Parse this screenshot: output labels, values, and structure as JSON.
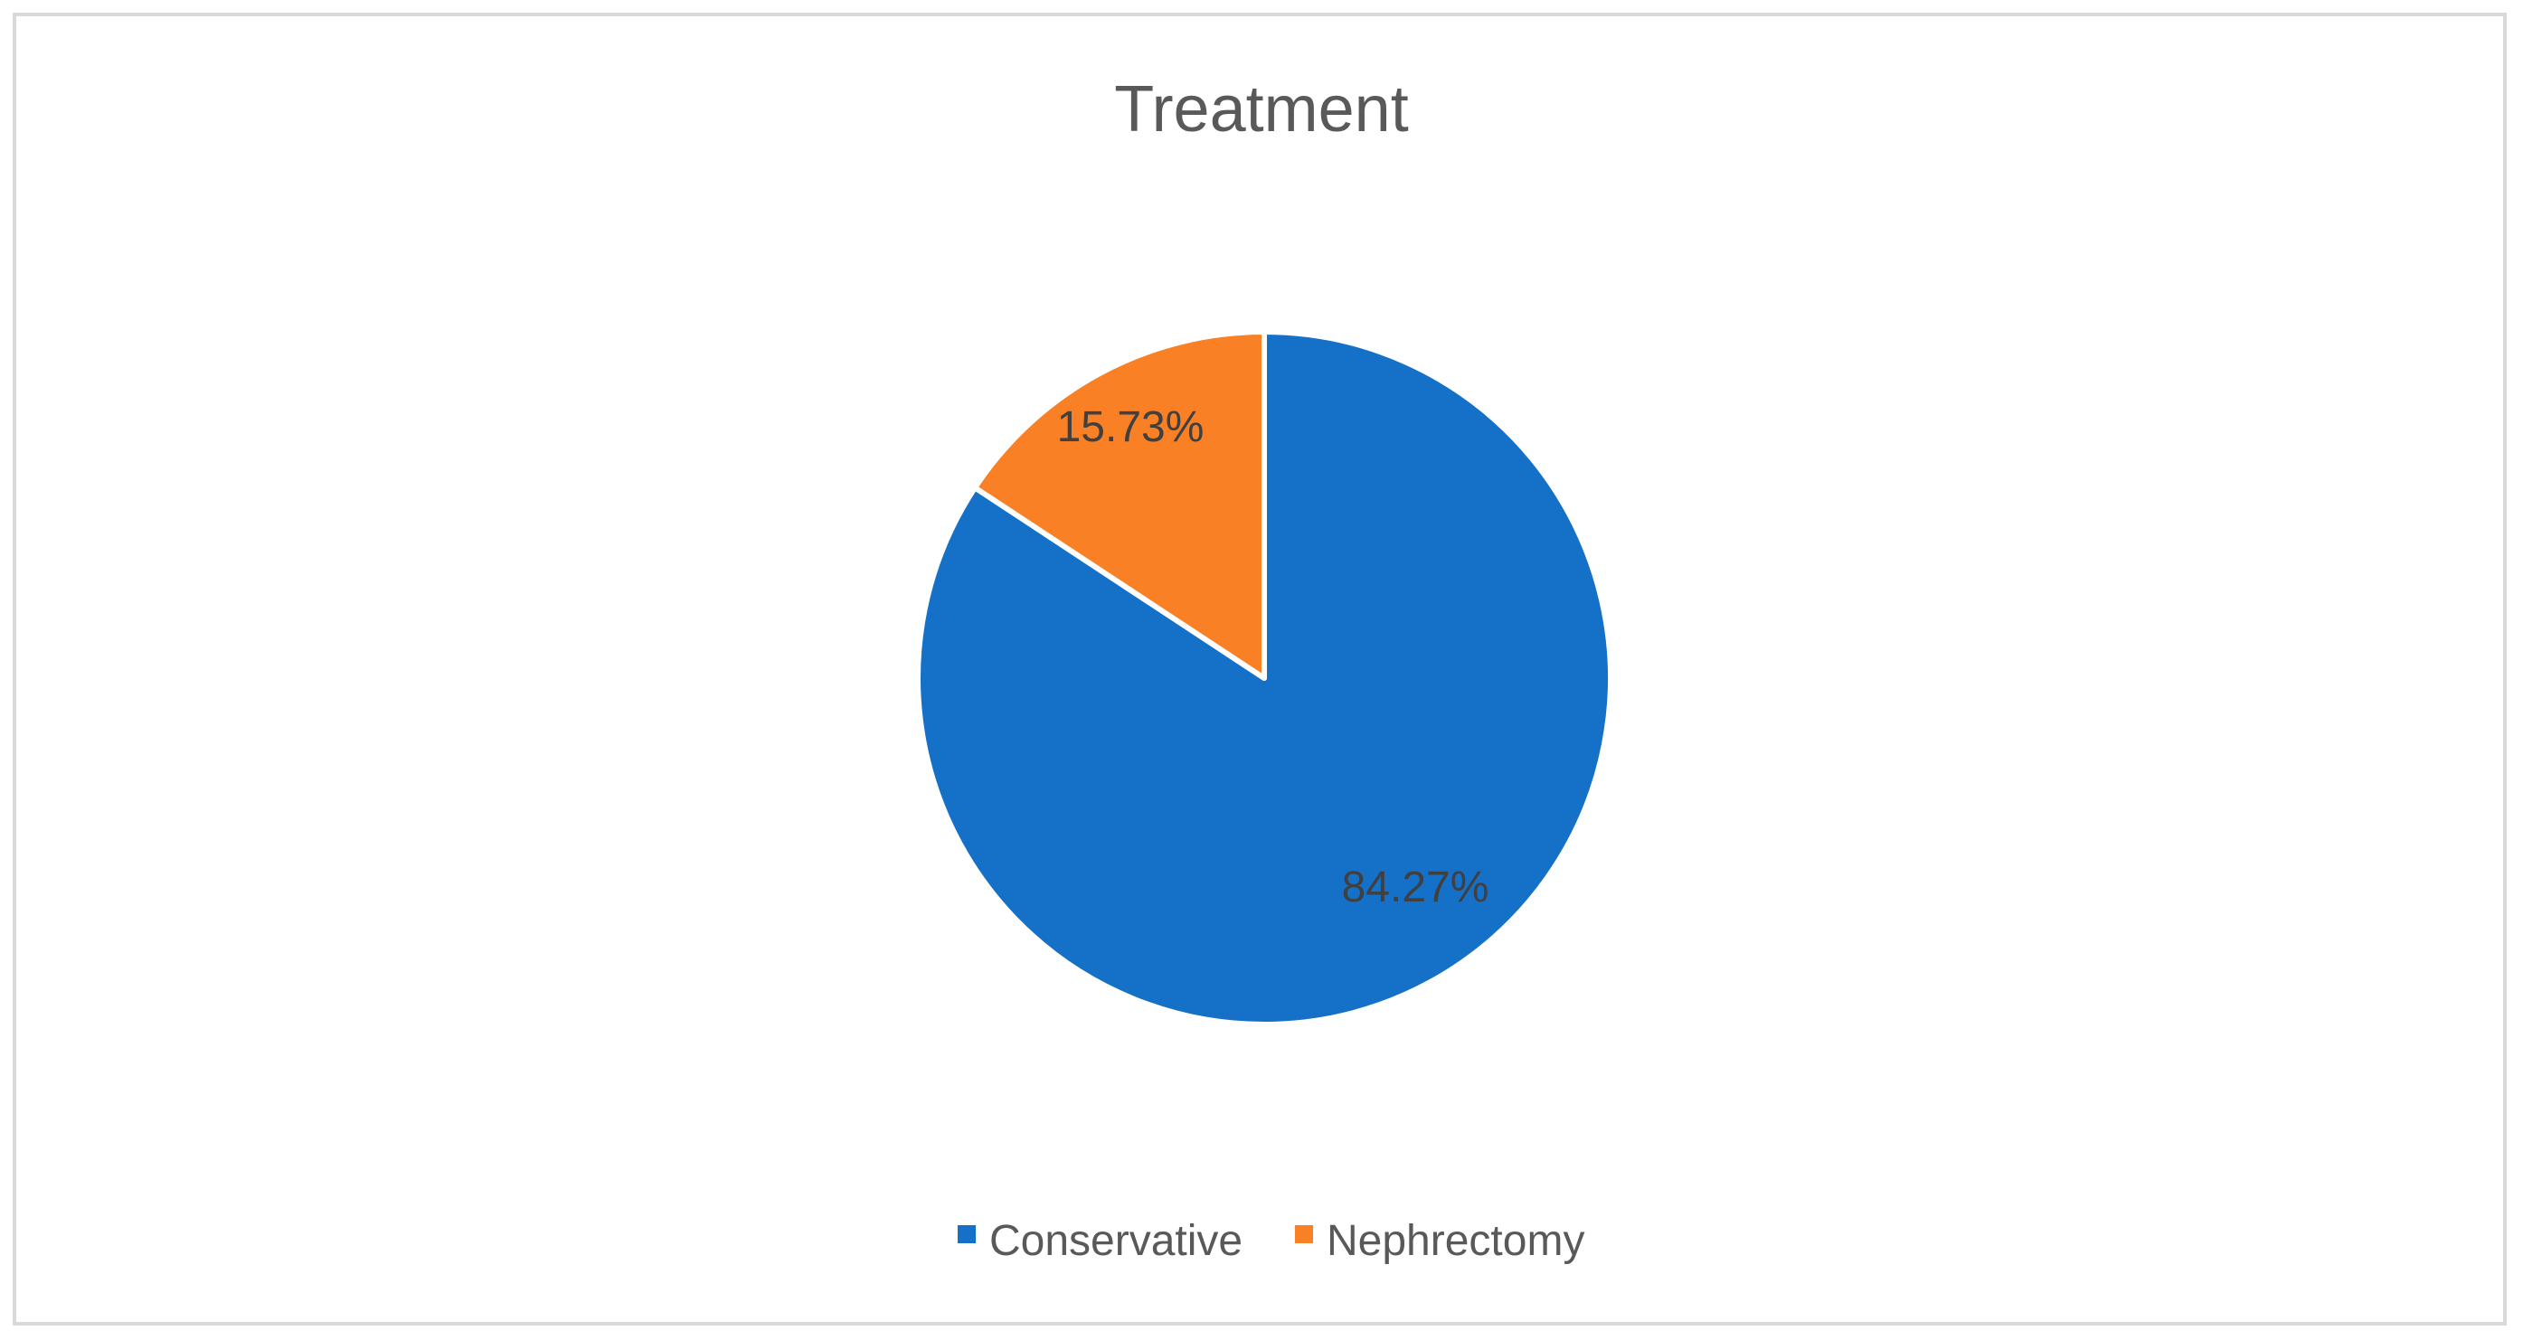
{
  "chart_data": {
    "type": "pie",
    "title": "Treatment",
    "series": [
      {
        "name": "Conservative",
        "value": 84.27,
        "label": "84.27%",
        "color": "#1570c8"
      },
      {
        "name": "Nephrectomy",
        "value": 15.73,
        "label": "15.73%",
        "color": "#f98025"
      }
    ],
    "start_angle_deg": 0,
    "direction": "clockwise",
    "legend_position": "bottom"
  }
}
